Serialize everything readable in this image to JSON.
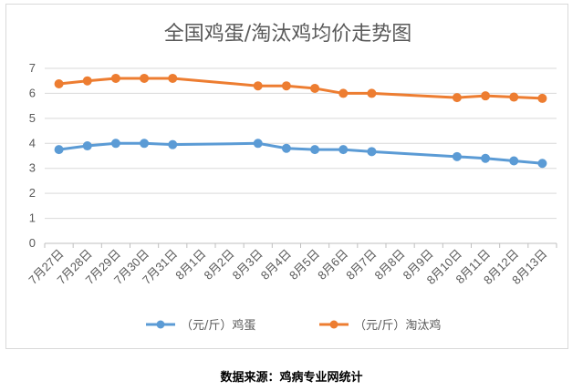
{
  "chart_data": {
    "type": "line",
    "title": "全国鸡蛋/淘汰鸡均价走势图",
    "xlabel": "",
    "ylabel": "",
    "ylim": [
      0,
      7
    ],
    "yticks": [
      0,
      1,
      2,
      3,
      4,
      5,
      6,
      7
    ],
    "grid": true,
    "legend": "bottom",
    "categories": [
      "7月27日",
      "7月28日",
      "7月29日",
      "7月30日",
      "7月31日",
      "8月1日",
      "8月2日",
      "8月3日",
      "8月4日",
      "8月5日",
      "8月6日",
      "8月7日",
      "8月8日",
      "8月9日",
      "8月10日",
      "8月11日",
      "8月12日",
      "8月13日"
    ],
    "series": [
      {
        "name": "（元/斤）鸡蛋",
        "color": "#5b9bd5",
        "values": [
          3.75,
          3.9,
          4.0,
          4.0,
          3.95,
          null,
          null,
          4.0,
          3.8,
          3.75,
          3.75,
          3.67,
          null,
          null,
          3.47,
          3.4,
          3.3,
          3.2
        ]
      },
      {
        "name": "（元/斤）淘汰鸡",
        "color": "#ed7d31",
        "values": [
          6.38,
          6.5,
          6.6,
          6.6,
          6.6,
          null,
          null,
          6.3,
          6.3,
          6.2,
          6.0,
          6.0,
          null,
          null,
          5.83,
          5.9,
          5.85,
          5.8
        ]
      }
    ]
  },
  "source": "数据来源：鸡病专业网统计"
}
